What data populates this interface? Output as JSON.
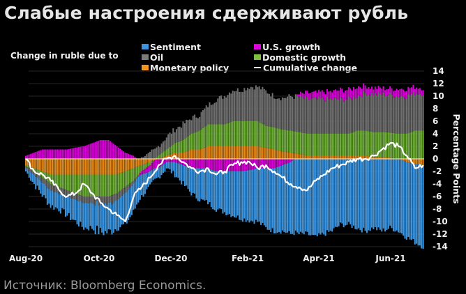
{
  "title": "Слабые настроения сдерживают рубль",
  "source": "Источник: Bloomberg Economics.",
  "colors": {
    "sentiment": "#3e95de",
    "oil": "#6e6e6e",
    "monetary_policy": "#e0891a",
    "us_growth": "#d400d4",
    "domestic_growth": "#6fae3a",
    "cumulative": "#ffffff",
    "zero_line": "#f5d7a0",
    "grid": "#262626"
  },
  "chart_data": {
    "type": "bar",
    "stacked": true,
    "title": "Слабые настроения сдерживают рубль",
    "legend_title": "Change in ruble due to",
    "legend_position": "top",
    "ylabel": "Percentage Points",
    "xlabel": "",
    "ylim": [
      -14,
      14
    ],
    "yticks": [
      14,
      12,
      10,
      8,
      6,
      4,
      2,
      0,
      -2,
      -4,
      -6,
      -8,
      -10,
      -12,
      -14
    ],
    "y_axis_side": "right",
    "grid": true,
    "xticks": [
      "Aug-20",
      "Oct-20",
      "Dec-20",
      "Feb-21",
      "Apr-21",
      "Jun-21"
    ],
    "x_range": [
      "2020-08",
      "2021-06"
    ],
    "legend": [
      {
        "key": "sentiment",
        "label": "Sentiment",
        "kind": "bar"
      },
      {
        "key": "us_growth",
        "label": "U.S. growth",
        "kind": "bar"
      },
      {
        "key": "oil",
        "label": "Oil",
        "kind": "bar"
      },
      {
        "key": "domestic_growth",
        "label": "Domestic growth",
        "kind": "bar"
      },
      {
        "key": "monetary_policy",
        "label": "Monetary policy",
        "kind": "bar"
      },
      {
        "key": "cumulative",
        "label": "Cumulative change",
        "kind": "line"
      }
    ],
    "x_index_note": "approx. weekly samples from early Aug-20 to late Jun-21",
    "series": [
      {
        "name": "Sentiment",
        "key": "sentiment",
        "values": [
          -0.5,
          -1.5,
          -2.0,
          -2.5,
          -2.5,
          -3.0,
          -3.5,
          -4.0,
          -4.0,
          -4.5,
          -4.5,
          -4.5,
          -5.0,
          -4.5,
          -3.5,
          -2.5,
          -1.5,
          -1.0,
          -2.0,
          -3.0,
          -4.0,
          -5.0,
          -5.5,
          -6.0,
          -6.5,
          -7.0,
          -7.5,
          -8.0,
          -8.5,
          -9.5,
          -10.0,
          -10.5,
          -11.5,
          -12.0,
          -12.0,
          -12.5,
          -12.0,
          -11.5,
          -10.5,
          -10.5,
          -11.0,
          -11.5,
          -11.0,
          -11.5,
          -11.0,
          -11.5,
          -12.0,
          -12.5,
          -13.0
        ]
      },
      {
        "name": "U.S. growth",
        "key": "us_growth",
        "values": [
          0.5,
          1.0,
          1.5,
          1.5,
          1.5,
          1.5,
          1.8,
          2.0,
          2.5,
          3.0,
          3.0,
          2.0,
          1.0,
          0.5,
          -0.5,
          -1.0,
          -1.5,
          -0.5,
          -0.5,
          -1.0,
          -1.5,
          -1.5,
          -1.5,
          -2.0,
          -2.0,
          -2.0,
          -2.0,
          -1.8,
          -1.5,
          -1.5,
          -1.5,
          -1.0,
          -0.5,
          0.5,
          1.0,
          1.0,
          1.2,
          1.2,
          1.5,
          1.5,
          1.5,
          1.2,
          1.0,
          1.0,
          1.0,
          1.2,
          1.2,
          1.0,
          0.8
        ]
      },
      {
        "name": "Oil",
        "key": "oil",
        "values": [
          -0.3,
          -0.5,
          -0.8,
          -1.0,
          -1.0,
          -1.0,
          -1.0,
          -1.0,
          -1.0,
          -1.2,
          -1.2,
          -1.0,
          -1.0,
          -0.5,
          0.2,
          1.0,
          1.5,
          2.0,
          2.2,
          2.5,
          2.5,
          2.5,
          3.0,
          4.0,
          4.5,
          5.0,
          5.0,
          5.5,
          5.5,
          5.5,
          5.0,
          5.0,
          5.5,
          5.5,
          5.5,
          5.5,
          5.5,
          5.5,
          5.5,
          5.5,
          5.5,
          6.0,
          6.0,
          6.0,
          6.0,
          6.0,
          6.0,
          6.0,
          6.0
        ]
      },
      {
        "name": "Domestic growth",
        "key": "domestic_growth",
        "values": [
          -0.2,
          -0.5,
          -1.0,
          -1.5,
          -2.0,
          -2.5,
          -3.0,
          -3.5,
          -3.5,
          -3.5,
          -3.5,
          -3.0,
          -2.5,
          -2.0,
          -1.0,
          -0.5,
          0.5,
          1.0,
          1.5,
          2.0,
          2.5,
          3.0,
          3.5,
          3.5,
          3.5,
          4.0,
          4.0,
          4.0,
          4.0,
          3.5,
          3.5,
          3.5,
          3.5,
          3.5,
          3.5,
          3.5,
          3.5,
          3.5,
          3.5,
          3.5,
          4.0,
          4.0,
          4.0,
          4.0,
          4.0,
          4.0,
          4.0,
          4.5,
          4.5
        ]
      },
      {
        "name": "Monetary policy",
        "key": "monetary_policy",
        "values": [
          -1.0,
          -1.5,
          -2.0,
          -2.5,
          -2.5,
          -2.5,
          -2.5,
          -2.5,
          -2.5,
          -2.5,
          -2.5,
          -2.5,
          -2.0,
          -1.5,
          -1.0,
          -0.5,
          0.0,
          0.5,
          1.0,
          1.0,
          1.5,
          1.5,
          2.0,
          2.0,
          2.0,
          2.0,
          2.0,
          2.0,
          2.0,
          1.8,
          1.5,
          1.2,
          1.0,
          0.8,
          0.5,
          0.5,
          0.5,
          0.5,
          0.5,
          0.5,
          0.5,
          0.5,
          0.3,
          0.3,
          0.2,
          0.0,
          -0.5,
          -0.8,
          -1.0
        ]
      },
      {
        "name": "Cumulative change",
        "key": "cumulative",
        "kind": "line",
        "values": [
          0.0,
          -2.0,
          -2.5,
          -3.5,
          -5.0,
          -6.0,
          -5.5,
          -4.0,
          -5.5,
          -7.0,
          -8.0,
          -9.0,
          -10.0,
          -6.0,
          -4.5,
          -3.0,
          -1.0,
          0.0,
          0.5,
          -0.5,
          -1.5,
          -2.0,
          -1.5,
          -2.5,
          -2.0,
          -1.0,
          -0.5,
          -0.5,
          -1.5,
          -1.0,
          -2.0,
          -3.0,
          -4.0,
          -4.5,
          -5.0,
          -3.5,
          -2.5,
          -1.5,
          -1.0,
          -0.5,
          0.0,
          0.0,
          0.5,
          1.5,
          2.5,
          2.0,
          0.5,
          -1.5,
          -1.0
        ]
      }
    ]
  },
  "legend_items": {
    "col1": [
      "Sentiment",
      "Oil",
      "Monetary policy"
    ],
    "col2": [
      "U.S. growth",
      "Domestic growth",
      "Cumulative change"
    ]
  }
}
